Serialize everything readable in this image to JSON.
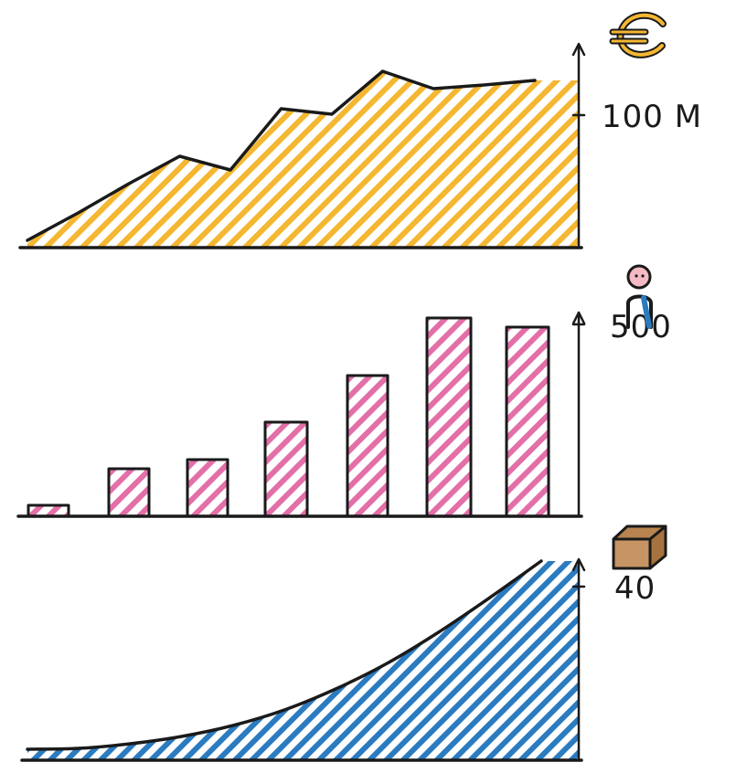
{
  "chart_data": [
    {
      "type": "area",
      "icon": "euro-icon",
      "x": [
        0,
        1,
        2,
        3,
        4,
        5,
        6,
        7,
        8,
        9,
        10
      ],
      "values": [
        8,
        38,
        70,
        100,
        85,
        152,
        146,
        193,
        174,
        178,
        183
      ],
      "ylim": [
        0,
        200
      ],
      "ytick": {
        "value": 145,
        "label": "100 M"
      },
      "color": "#f5b731"
    },
    {
      "type": "bar",
      "icon": "person-icon",
      "values": [
        12,
        52,
        62,
        103,
        154,
        217,
        207
      ],
      "ylim": [
        0,
        260
      ],
      "ytick": {
        "value": 210,
        "label": "500"
      },
      "color": "#e36fa8"
    },
    {
      "type": "area",
      "icon": "box-icon",
      "x": [
        0,
        1,
        2,
        3,
        4,
        5,
        6,
        7,
        8,
        9,
        10
      ],
      "values": [
        12,
        13,
        18,
        26,
        38,
        55,
        78,
        106,
        140,
        178,
        218
      ],
      "ylim": [
        0,
        240
      ],
      "ytick": {
        "value": 190,
        "label": "40"
      },
      "color": "#2b7bc0"
    }
  ]
}
